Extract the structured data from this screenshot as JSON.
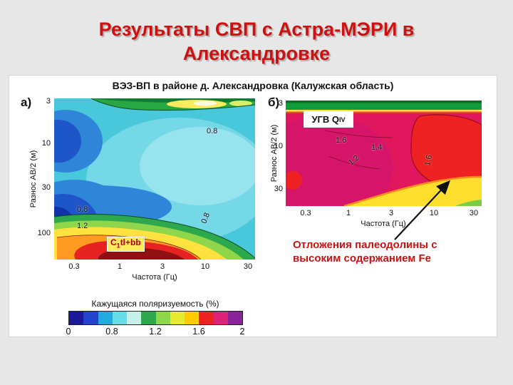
{
  "slide": {
    "title_line1": "Результаты СВП с Астра-МЭРИ в",
    "title_line2": "Александровке",
    "title_color": "#cc1111",
    "background_color": "#e7e7e7"
  },
  "figure": {
    "header": "ВЭЗ-ВП в районе д. Александровка (Калужская область)",
    "panelA": {
      "label": "а)",
      "ylabel": "Разнос АВ/2 (м)",
      "xlabel": "Частота (Гц)",
      "y_ticks": [
        "3",
        "10",
        "30",
        "100"
      ],
      "x_ticks": [
        "0.3",
        "1",
        "3",
        "10",
        "30"
      ],
      "contour_labels": [
        "0.8",
        "0.8",
        "1.2",
        "0.8"
      ],
      "strat_prefix": "C",
      "strat_sub": "1",
      "strat_suffix": "tl+bb"
    },
    "panelB": {
      "label": "б)",
      "ylabel": "Разнос АВ/2 (м)",
      "xlabel": "Частота (Гц)",
      "y_ticks": [
        "3",
        "10",
        "30"
      ],
      "x_ticks": [
        "0.3",
        "1",
        "3",
        "10",
        "30"
      ],
      "contour_labels": [
        "1.6",
        "1.4",
        "1.2",
        "1.6"
      ],
      "ugv_label": "УГВ Q",
      "ugv_sub": "IV"
    },
    "callout": {
      "line1": "Отложения палеодолины с",
      "line2": "высоким содержанием Fe",
      "color": "#cc1111"
    },
    "colorbar": {
      "label": "Кажущаяся поляризуемость (%)",
      "ticks": [
        "0",
        "0.8",
        "1.2",
        "1.6",
        "2"
      ],
      "colors": [
        "#1a1a99",
        "#2244cc",
        "#22aadd",
        "#66dde8",
        "#c8f0ea",
        "#2fa84c",
        "#8fd64a",
        "#e8ea2e",
        "#ffcc00",
        "#ee2222",
        "#dd2277",
        "#8a2299"
      ]
    }
  },
  "chart_data": [
    {
      "type": "heatmap",
      "panel": "а",
      "title": "ВЭЗ-ВП в районе д. Александровка (Калужская область)",
      "xlabel": "Частота (Гц)",
      "x_scale": "log",
      "x_ticks": [
        0.3,
        1,
        3,
        10,
        30
      ],
      "ylabel": "Разнос АВ/2 (м)",
      "y_scale": "log",
      "y_ticks": [
        3,
        10,
        30,
        100
      ],
      "value_label": "Кажущаяся поляризуемость (%)",
      "value_range": [
        0,
        2
      ],
      "labeled_contours": [
        0.8,
        1.2
      ],
      "regions": [
        {
          "area": "center and right",
          "value_pct": "0.2–0.6",
          "color": "cyan / light cyan minimum"
        },
        {
          "area": "left edge, two blobs",
          "value_pct": "0–0.2",
          "color": "dark blue minimum"
        },
        {
          "area": "top band (shallow AB/2≈3)",
          "value_pct": "0.8–1.2",
          "color": "green with yellow-white spots"
        },
        {
          "area": "bottom band (AB/2≈100), labeled C1tl+bb",
          "value_pct": "0.8–2.0",
          "color": "green-yellow-red to dark red maximum"
        }
      ]
    },
    {
      "type": "heatmap",
      "panel": "б",
      "title": "ВЭЗ-ВП в районе д. Александровка (Калужская область)",
      "xlabel": "Частота (Гц)",
      "x_scale": "log",
      "x_ticks": [
        0.3,
        1,
        3,
        10,
        30
      ],
      "ylabel": "Разнос АВ/2 (м)",
      "y_scale": "log",
      "y_ticks": [
        3,
        10,
        30
      ],
      "value_label": "Кажущаяся поляризуемость (%)",
      "value_range": [
        0,
        2
      ],
      "labeled_contours": [
        1.6,
        1.4,
        1.2
      ],
      "regions": [
        {
          "area": "top band, marked УГВ QIV",
          "value_pct": "0.8–1.0",
          "color": "green"
        },
        {
          "area": "main field",
          "value_pct": "1.8–2.0",
          "color": "crimson/magenta maximum"
        },
        {
          "area": "right-side blob (arrow target: paleovalley deposits with high Fe)",
          "value_pct": "≈1.6",
          "color": "red"
        },
        {
          "area": "bottom right wedge",
          "value_pct": "1.2–1.4",
          "color": "yellow"
        }
      ]
    }
  ]
}
